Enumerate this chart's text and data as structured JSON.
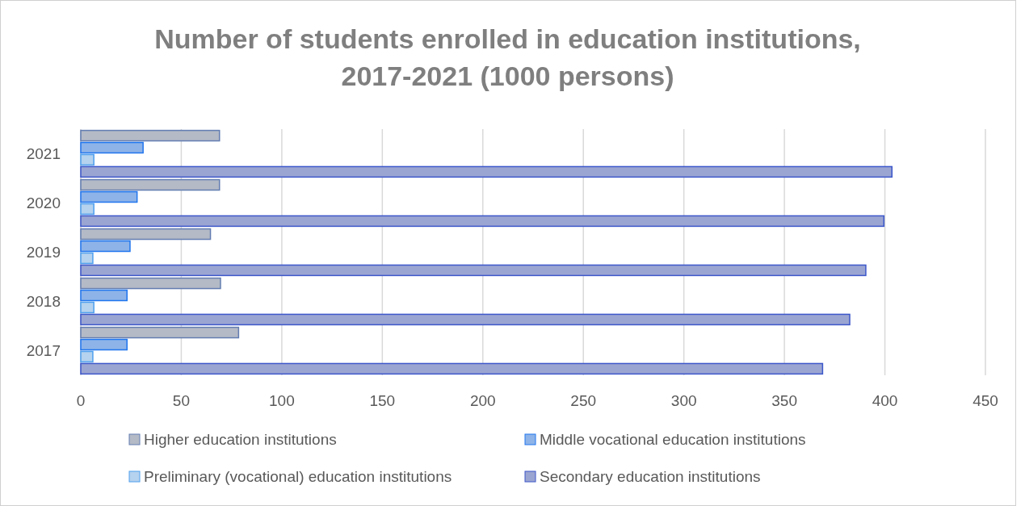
{
  "chart_data": {
    "type": "bar",
    "orientation": "horizontal",
    "title": "Number of students enrolled in education institutions, 2017-2021 (1000 persons)",
    "categories": [
      "2021",
      "2020",
      "2019",
      "2018",
      "2017"
    ],
    "series": [
      {
        "name": "Higher education institutions",
        "color": "#b4bac6",
        "values": [
          69,
          69,
          64.5,
          69.5,
          78.5
        ]
      },
      {
        "name": "Middle vocational education institutions",
        "color": "#8db3e8",
        "values": [
          31,
          28,
          24.5,
          23,
          23
        ]
      },
      {
        "name": "Preliminary (vocational) education institutions",
        "color": "#b5d2ee",
        "values": [
          6.5,
          6.5,
          6,
          6.5,
          6
        ]
      },
      {
        "name": "Secondary education institutions",
        "color": "#9ba5d1",
        "values": [
          403.5,
          399.5,
          390.5,
          382.5,
          369
        ]
      }
    ],
    "xlim": [
      0,
      450
    ],
    "xticks": [
      0,
      50,
      100,
      150,
      200,
      250,
      300,
      350,
      400,
      450
    ],
    "grid": "x",
    "legend": "bottom"
  }
}
